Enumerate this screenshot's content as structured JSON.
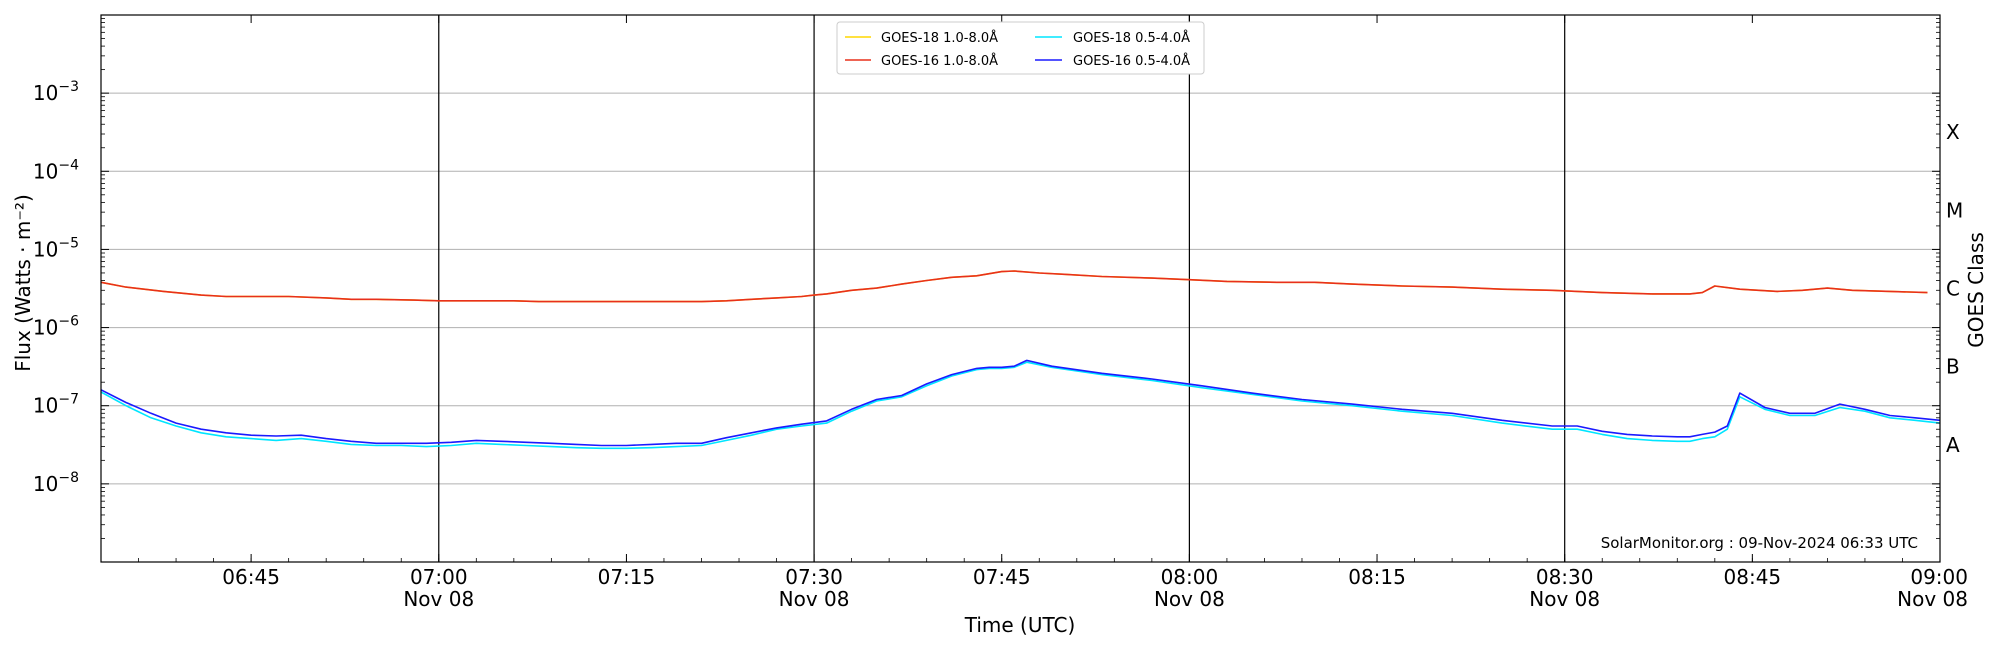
{
  "chart_data": {
    "type": "line",
    "xlabel": "Time (UTC)",
    "ylabel": "Flux (Watts · m⁻²)",
    "right_label": "GOES Class",
    "credit": "SolarMonitor.org : 09-Nov-2024 06:33 UTC",
    "x_range_minutes": [
      0,
      147
    ],
    "x_start": "06:33",
    "y_scale": "log",
    "ylim_exp": [
      -9,
      -2
    ],
    "grid": "horizontal",
    "legend_position": "top-center",
    "x_ticks": [
      {
        "minute": 12,
        "time": "06:45",
        "date": ""
      },
      {
        "minute": 27,
        "time": "07:00",
        "date": "Nov 08"
      },
      {
        "minute": 42,
        "time": "07:15",
        "date": ""
      },
      {
        "minute": 57,
        "time": "07:30",
        "date": "Nov 08"
      },
      {
        "minute": 72,
        "time": "07:45",
        "date": ""
      },
      {
        "minute": 87,
        "time": "08:00",
        "date": "Nov 08"
      },
      {
        "minute": 102,
        "time": "08:15",
        "date": ""
      },
      {
        "minute": 117,
        "time": "08:30",
        "date": "Nov 08"
      },
      {
        "minute": 132,
        "time": "08:45",
        "date": ""
      },
      {
        "minute": 147,
        "time": "09:00",
        "date": "Nov 08"
      }
    ],
    "vertical_lines_minutes": [
      27,
      57,
      87,
      117
    ],
    "y_ticks": [
      {
        "exp": -8,
        "label": "10",
        "sup": "−8"
      },
      {
        "exp": -7,
        "label": "10",
        "sup": "−7"
      },
      {
        "exp": -6,
        "label": "10",
        "sup": "−6"
      },
      {
        "exp": -5,
        "label": "10",
        "sup": "−5"
      },
      {
        "exp": -4,
        "label": "10",
        "sup": "−4"
      },
      {
        "exp": -3,
        "label": "10",
        "sup": "−3"
      }
    ],
    "gridline_exps": [
      -8,
      -7,
      -6,
      -5,
      -4,
      -3
    ],
    "classes": [
      {
        "label": "A",
        "exp": -7.5
      },
      {
        "label": "B",
        "exp": -6.5
      },
      {
        "label": "C",
        "exp": -5.5
      },
      {
        "label": "M",
        "exp": -4.5
      },
      {
        "label": "X",
        "exp": -3.5
      }
    ],
    "series": [
      {
        "name": "GOES-18 1.0-8.0Å",
        "color": "#ffd700",
        "x": [
          0,
          2,
          5,
          8,
          10,
          12,
          15,
          18,
          20,
          22,
          25,
          27,
          30,
          33,
          35,
          38,
          40,
          42,
          45,
          48,
          50,
          52,
          54,
          56,
          57,
          58,
          60,
          62,
          64,
          66,
          68,
          70,
          72,
          73,
          75,
          77,
          80,
          84,
          87,
          90,
          94,
          97,
          100,
          104,
          108,
          112,
          116,
          118,
          120,
          124,
          127,
          128,
          129,
          131,
          134,
          136,
          138,
          140,
          143,
          146
        ],
        "y": [
          3.8e-06,
          3.3e-06,
          2.9e-06,
          2.6e-06,
          2.5e-06,
          2.5e-06,
          2.5e-06,
          2.4e-06,
          2.3e-06,
          2.3e-06,
          2.25e-06,
          2.2e-06,
          2.2e-06,
          2.2e-06,
          2.15e-06,
          2.15e-06,
          2.15e-06,
          2.15e-06,
          2.15e-06,
          2.15e-06,
          2.2e-06,
          2.3e-06,
          2.4e-06,
          2.5e-06,
          2.6e-06,
          2.7e-06,
          3e-06,
          3.2e-06,
          3.6e-06,
          4e-06,
          4.4e-06,
          4.6e-06,
          5.2e-06,
          5.3e-06,
          5e-06,
          4.8e-06,
          4.5e-06,
          4.3e-06,
          4.1e-06,
          3.9e-06,
          3.8e-06,
          3.8e-06,
          3.6e-06,
          3.4e-06,
          3.3e-06,
          3.1e-06,
          3e-06,
          2.9e-06,
          2.8e-06,
          2.7e-06,
          2.7e-06,
          2.8e-06,
          3.4e-06,
          3.1e-06,
          2.9e-06,
          3e-06,
          3.2e-06,
          3e-06,
          2.9e-06,
          2.8e-06
        ]
      },
      {
        "name": "GOES-16 1.0-8.0Å",
        "color": "#e8301c",
        "x": [
          0,
          2,
          5,
          8,
          10,
          12,
          15,
          18,
          20,
          22,
          25,
          27,
          30,
          33,
          35,
          38,
          40,
          42,
          45,
          48,
          50,
          52,
          54,
          56,
          57,
          58,
          60,
          62,
          64,
          66,
          68,
          70,
          72,
          73,
          75,
          77,
          80,
          84,
          87,
          90,
          94,
          97,
          100,
          104,
          108,
          112,
          116,
          118,
          120,
          124,
          127,
          128,
          129,
          131,
          134,
          136,
          138,
          140,
          143,
          146
        ],
        "y": [
          3.8e-06,
          3.3e-06,
          2.9e-06,
          2.6e-06,
          2.5e-06,
          2.5e-06,
          2.5e-06,
          2.4e-06,
          2.3e-06,
          2.3e-06,
          2.25e-06,
          2.2e-06,
          2.2e-06,
          2.2e-06,
          2.15e-06,
          2.15e-06,
          2.15e-06,
          2.15e-06,
          2.15e-06,
          2.15e-06,
          2.2e-06,
          2.3e-06,
          2.4e-06,
          2.5e-06,
          2.6e-06,
          2.7e-06,
          3e-06,
          3.2e-06,
          3.6e-06,
          4e-06,
          4.4e-06,
          4.6e-06,
          5.2e-06,
          5.3e-06,
          5e-06,
          4.8e-06,
          4.5e-06,
          4.3e-06,
          4.1e-06,
          3.9e-06,
          3.8e-06,
          3.8e-06,
          3.6e-06,
          3.4e-06,
          3.3e-06,
          3.1e-06,
          3e-06,
          2.9e-06,
          2.8e-06,
          2.7e-06,
          2.7e-06,
          2.8e-06,
          3.4e-06,
          3.1e-06,
          2.9e-06,
          3e-06,
          3.2e-06,
          3e-06,
          2.9e-06,
          2.8e-06
        ]
      },
      {
        "name": "GOES-18 0.5-4.0Å",
        "color": "#00e5ff",
        "x": [
          0,
          2,
          4,
          6,
          8,
          10,
          12,
          14,
          16,
          18,
          20,
          22,
          24,
          26,
          28,
          30,
          32,
          34,
          36,
          38,
          40,
          42,
          44,
          46,
          48,
          50,
          52,
          54,
          56,
          58,
          60,
          62,
          64,
          66,
          68,
          70,
          71,
          72,
          73,
          74,
          76,
          80,
          84,
          88,
          92,
          96,
          100,
          104,
          108,
          112,
          116,
          118,
          120,
          122,
          124,
          126,
          127,
          128,
          129,
          130,
          131,
          133,
          135,
          137,
          139,
          141,
          143,
          145,
          147
        ],
        "y": [
          1.5e-07,
          1e-07,
          7e-08,
          5.5e-08,
          4.5e-08,
          4e-08,
          3.8e-08,
          3.6e-08,
          3.8e-08,
          3.5e-08,
          3.2e-08,
          3.1e-08,
          3.1e-08,
          3e-08,
          3.1e-08,
          3.3e-08,
          3.2e-08,
          3.1e-08,
          3e-08,
          2.9e-08,
          2.85e-08,
          2.85e-08,
          2.9e-08,
          3e-08,
          3.1e-08,
          3.6e-08,
          4.2e-08,
          5e-08,
          5.5e-08,
          6e-08,
          8.5e-08,
          1.15e-07,
          1.3e-07,
          1.8e-07,
          2.4e-07,
          2.9e-07,
          3e-07,
          3e-07,
          3.1e-07,
          3.6e-07,
          3.1e-07,
          2.5e-07,
          2.1e-07,
          1.7e-07,
          1.4e-07,
          1.15e-07,
          1e-07,
          8.5e-08,
          7.5e-08,
          6e-08,
          5e-08,
          5e-08,
          4.3e-08,
          3.8e-08,
          3.6e-08,
          3.5e-08,
          3.5e-08,
          3.8e-08,
          4e-08,
          5e-08,
          1.3e-07,
          9e-08,
          7.5e-08,
          7.5e-08,
          9.5e-08,
          8.5e-08,
          7e-08,
          6.5e-08,
          6e-08
        ]
      },
      {
        "name": "GOES-16 0.5-4.0Å",
        "color": "#1a1aff",
        "x": [
          0,
          2,
          4,
          6,
          8,
          10,
          12,
          14,
          16,
          18,
          20,
          22,
          24,
          26,
          28,
          30,
          32,
          34,
          36,
          38,
          40,
          42,
          44,
          46,
          48,
          50,
          52,
          54,
          56,
          58,
          60,
          62,
          64,
          66,
          68,
          70,
          71,
          72,
          73,
          74,
          76,
          80,
          84,
          88,
          92,
          96,
          100,
          104,
          108,
          112,
          116,
          118,
          120,
          122,
          124,
          126,
          127,
          128,
          129,
          130,
          131,
          133,
          135,
          137,
          139,
          141,
          143,
          145,
          147
        ],
        "y": [
          1.6e-07,
          1.1e-07,
          8e-08,
          6e-08,
          5e-08,
          4.5e-08,
          4.2e-08,
          4.1e-08,
          4.2e-08,
          3.8e-08,
          3.5e-08,
          3.3e-08,
          3.3e-08,
          3.3e-08,
          3.4e-08,
          3.6e-08,
          3.5e-08,
          3.4e-08,
          3.3e-08,
          3.2e-08,
          3.1e-08,
          3.1e-08,
          3.2e-08,
          3.3e-08,
          3.3e-08,
          3.9e-08,
          4.5e-08,
          5.2e-08,
          5.8e-08,
          6.4e-08,
          9e-08,
          1.2e-07,
          1.35e-07,
          1.9e-07,
          2.5e-07,
          3e-07,
          3.1e-07,
          3.1e-07,
          3.2e-07,
          3.8e-07,
          3.2e-07,
          2.6e-07,
          2.2e-07,
          1.8e-07,
          1.45e-07,
          1.2e-07,
          1.05e-07,
          9e-08,
          8e-08,
          6.5e-08,
          5.5e-08,
          5.5e-08,
          4.7e-08,
          4.3e-08,
          4.1e-08,
          4e-08,
          4e-08,
          4.3e-08,
          4.6e-08,
          5.5e-08,
          1.45e-07,
          9.5e-08,
          8e-08,
          8e-08,
          1.05e-07,
          9e-08,
          7.5e-08,
          7e-08,
          6.5e-08
        ]
      }
    ]
  }
}
